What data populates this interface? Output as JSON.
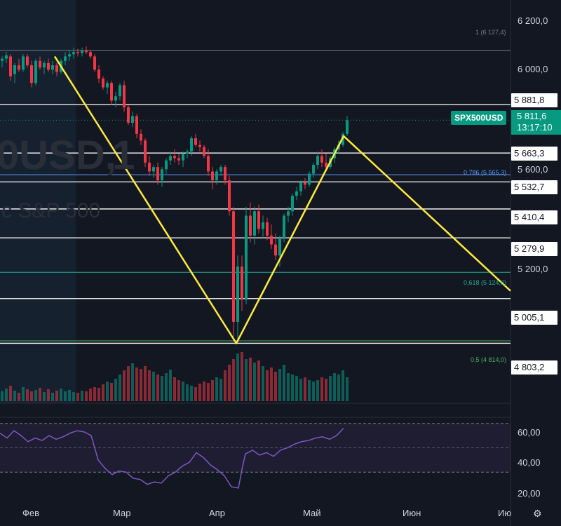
{
  "chart_data": {
    "type": "candlestick",
    "symbol": "SPX500USD",
    "watermark": {
      "symbol": "0USD,",
      "interval": "1",
      "name": "c S&P 500"
    },
    "last_price": "5 811,6",
    "countdown": "13:17:10",
    "price_axis_ticks": [
      "6 200,0",
      "6 000,0",
      "5 600,0",
      "5 200,0"
    ],
    "horizontal_levels": [
      "5 881,8",
      "5 663,3",
      "5 532,7",
      "5 410,4",
      "5 279,9",
      "5 005,1",
      "4 803,2"
    ],
    "fib_levels": [
      {
        "text": "1 (6 127,4)",
        "value": 6127.4,
        "color": "#787b86"
      },
      {
        "text": "0,786 (5 565,3)",
        "value": 5565.3,
        "color": "#5b9cf6"
      },
      {
        "text": "0,618 (5 124,0)",
        "value": 5124.0,
        "color": "#22ab94"
      },
      {
        "text": "0,5 (4 814,0)",
        "value": 4814.0,
        "color": "#4caf50"
      }
    ],
    "x_ticks": [
      "Фев",
      "Мар",
      "Апр",
      "Май",
      "Июн",
      "Ию"
    ],
    "rsi_ticks": [
      "60,00",
      "40,00",
      "20,00"
    ],
    "y_range": [
      4700,
      6260
    ],
    "rsi_range": [
      10,
      75
    ],
    "colors": {
      "up": "#089981",
      "down": "#f23645",
      "zigzag": "#ffeb3b",
      "rsi": "#7e57c2",
      "level": "#ffffff",
      "background": "#131722"
    },
    "zigzag": [
      [
        78,
        6100
      ],
      [
        337,
        4803
      ],
      [
        490,
        5740
      ],
      [
        728,
        5040
      ]
    ],
    "candles": [
      [
        0,
        6080,
        6100,
        6050,
        6090
      ],
      [
        6,
        6090,
        6120,
        6070,
        6105
      ],
      [
        12,
        6100,
        6110,
        5990,
        6010
      ],
      [
        18,
        6020,
        6070,
        5980,
        6060
      ],
      [
        24,
        6060,
        6090,
        6030,
        6040
      ],
      [
        30,
        6040,
        6110,
        6030,
        6100
      ],
      [
        36,
        6100,
        6110,
        6050,
        6060
      ],
      [
        42,
        6060,
        6080,
        5960,
        5980
      ],
      [
        48,
        5980,
        6090,
        5970,
        6080
      ],
      [
        54,
        6080,
        6100,
        6040,
        6050
      ],
      [
        60,
        6050,
        6080,
        6020,
        6070
      ],
      [
        66,
        6070,
        6090,
        6030,
        6040
      ],
      [
        72,
        6040,
        6080,
        6020,
        6060
      ],
      [
        78,
        6060,
        6070,
        6010,
        6030
      ],
      [
        84,
        6030,
        6090,
        6020,
        6080
      ],
      [
        90,
        6080,
        6120,
        6060,
        6100
      ],
      [
        96,
        6100,
        6130,
        6080,
        6110
      ],
      [
        102,
        6110,
        6140,
        6090,
        6120
      ],
      [
        108,
        6120,
        6135,
        6100,
        6115
      ],
      [
        114,
        6115,
        6140,
        6100,
        6125
      ],
      [
        120,
        6125,
        6145,
        6110,
        6120
      ],
      [
        126,
        6120,
        6130,
        6090,
        6100
      ],
      [
        132,
        6100,
        6110,
        6030,
        6040
      ],
      [
        138,
        6040,
        6060,
        5980,
        6000
      ],
      [
        144,
        6000,
        6010,
        5950,
        5960
      ],
      [
        150,
        5960,
        5990,
        5930,
        5980
      ],
      [
        156,
        5980,
        5990,
        5880,
        5900
      ],
      [
        162,
        5900,
        5940,
        5870,
        5920
      ],
      [
        168,
        5920,
        5980,
        5900,
        5970
      ],
      [
        174,
        5970,
        5990,
        5850,
        5870
      ],
      [
        180,
        5870,
        5880,
        5790,
        5800
      ],
      [
        186,
        5800,
        5850,
        5780,
        5830
      ],
      [
        192,
        5830,
        5840,
        5730,
        5750
      ],
      [
        198,
        5750,
        5770,
        5700,
        5720
      ],
      [
        204,
        5720,
        5730,
        5600,
        5620
      ],
      [
        210,
        5620,
        5650,
        5560,
        5580
      ],
      [
        216,
        5580,
        5610,
        5550,
        5600
      ],
      [
        222,
        5600,
        5620,
        5520,
        5540
      ],
      [
        228,
        5540,
        5600,
        5510,
        5590
      ],
      [
        234,
        5590,
        5640,
        5570,
        5630
      ],
      [
        240,
        5630,
        5670,
        5610,
        5650
      ],
      [
        246,
        5650,
        5680,
        5620,
        5640
      ],
      [
        252,
        5640,
        5660,
        5610,
        5630
      ],
      [
        258,
        5630,
        5670,
        5600,
        5660
      ],
      [
        264,
        5660,
        5680,
        5640,
        5670
      ],
      [
        270,
        5670,
        5740,
        5650,
        5730
      ],
      [
        276,
        5730,
        5750,
        5690,
        5700
      ],
      [
        282,
        5700,
        5720,
        5670,
        5690
      ],
      [
        288,
        5690,
        5700,
        5640,
        5650
      ],
      [
        294,
        5650,
        5680,
        5560,
        5580
      ],
      [
        300,
        5580,
        5600,
        5500,
        5540
      ],
      [
        306,
        5540,
        5590,
        5520,
        5580
      ],
      [
        312,
        5580,
        5610,
        5560,
        5600
      ],
      [
        318,
        5600,
        5610,
        5520,
        5540
      ],
      [
        324,
        5540,
        5560,
        5380,
        5400
      ],
      [
        330,
        5400,
        5420,
        4830,
        4900
      ],
      [
        336,
        4900,
        5200,
        4810,
        5150
      ],
      [
        342,
        5150,
        5200,
        4950,
        5000
      ],
      [
        348,
        5000,
        5420,
        4980,
        5380
      ],
      [
        354,
        5380,
        5440,
        5260,
        5290
      ],
      [
        360,
        5290,
        5420,
        5250,
        5400
      ],
      [
        366,
        5400,
        5430,
        5300,
        5320
      ],
      [
        372,
        5320,
        5380,
        5280,
        5350
      ],
      [
        378,
        5350,
        5370,
        5270,
        5290
      ],
      [
        384,
        5290,
        5340,
        5230,
        5250
      ],
      [
        390,
        5250,
        5300,
        5180,
        5200
      ],
      [
        396,
        5200,
        5290,
        5150,
        5280
      ],
      [
        402,
        5280,
        5390,
        5260,
        5380
      ],
      [
        408,
        5380,
        5420,
        5350,
        5400
      ],
      [
        414,
        5400,
        5480,
        5380,
        5470
      ],
      [
        420,
        5470,
        5510,
        5450,
        5490
      ],
      [
        426,
        5490,
        5540,
        5470,
        5530
      ],
      [
        432,
        5530,
        5550,
        5500,
        5520
      ],
      [
        438,
        5520,
        5580,
        5510,
        5570
      ],
      [
        444,
        5570,
        5620,
        5550,
        5610
      ],
      [
        450,
        5610,
        5670,
        5590,
        5650
      ],
      [
        456,
        5650,
        5680,
        5600,
        5620
      ],
      [
        462,
        5620,
        5660,
        5580,
        5600
      ],
      [
        468,
        5600,
        5650,
        5590,
        5640
      ],
      [
        474,
        5640,
        5690,
        5620,
        5680
      ],
      [
        480,
        5680,
        5720,
        5660,
        5700
      ],
      [
        486,
        5700,
        5760,
        5690,
        5750
      ],
      [
        492,
        5750,
        5830,
        5740,
        5811.6
      ]
    ],
    "rsi": [
      [
        0,
        62
      ],
      [
        10,
        58
      ],
      [
        20,
        64
      ],
      [
        30,
        60
      ],
      [
        40,
        55
      ],
      [
        50,
        58
      ],
      [
        60,
        56
      ],
      [
        70,
        60
      ],
      [
        80,
        57
      ],
      [
        90,
        59
      ],
      [
        100,
        62
      ],
      [
        110,
        64
      ],
      [
        120,
        63
      ],
      [
        130,
        60
      ],
      [
        140,
        40
      ],
      [
        150,
        33
      ],
      [
        160,
        28
      ],
      [
        170,
        31
      ],
      [
        180,
        30
      ],
      [
        190,
        25
      ],
      [
        200,
        24
      ],
      [
        210,
        20
      ],
      [
        220,
        22
      ],
      [
        230,
        21
      ],
      [
        240,
        27
      ],
      [
        250,
        30
      ],
      [
        260,
        35
      ],
      [
        270,
        38
      ],
      [
        280,
        46
      ],
      [
        290,
        42
      ],
      [
        300,
        36
      ],
      [
        310,
        32
      ],
      [
        320,
        27
      ],
      [
        330,
        18
      ],
      [
        340,
        17
      ],
      [
        346,
        35
      ],
      [
        350,
        45
      ],
      [
        360,
        48
      ],
      [
        370,
        44
      ],
      [
        380,
        46
      ],
      [
        390,
        43
      ],
      [
        400,
        48
      ],
      [
        410,
        50
      ],
      [
        420,
        53
      ],
      [
        430,
        55
      ],
      [
        440,
        56
      ],
      [
        450,
        58
      ],
      [
        460,
        59
      ],
      [
        470,
        57
      ],
      [
        480,
        60
      ],
      [
        490,
        66
      ]
    ],
    "volume": [
      [
        0,
        14
      ],
      [
        6,
        18
      ],
      [
        12,
        22
      ],
      [
        18,
        15
      ],
      [
        24,
        12
      ],
      [
        30,
        20
      ],
      [
        36,
        17
      ],
      [
        42,
        14
      ],
      [
        48,
        16
      ],
      [
        54,
        19
      ],
      [
        60,
        13
      ],
      [
        66,
        17
      ],
      [
        72,
        12
      ],
      [
        78,
        15
      ],
      [
        84,
        18
      ],
      [
        90,
        14
      ],
      [
        96,
        16
      ],
      [
        102,
        13
      ],
      [
        108,
        12
      ],
      [
        114,
        15
      ],
      [
        120,
        14
      ],
      [
        126,
        18
      ],
      [
        132,
        20
      ],
      [
        138,
        19
      ],
      [
        144,
        24
      ],
      [
        150,
        28
      ],
      [
        156,
        26
      ],
      [
        162,
        32
      ],
      [
        168,
        38
      ],
      [
        174,
        44
      ],
      [
        180,
        50
      ],
      [
        186,
        54
      ],
      [
        192,
        48
      ],
      [
        198,
        46
      ],
      [
        204,
        50
      ],
      [
        210,
        44
      ],
      [
        216,
        42
      ],
      [
        222,
        38
      ],
      [
        228,
        36
      ],
      [
        234,
        40
      ],
      [
        240,
        45
      ],
      [
        246,
        34
      ],
      [
        252,
        30
      ],
      [
        258,
        28
      ],
      [
        264,
        24
      ],
      [
        270,
        22
      ],
      [
        276,
        20
      ],
      [
        282,
        25
      ],
      [
        288,
        28
      ],
      [
        294,
        26
      ],
      [
        300,
        30
      ],
      [
        306,
        34
      ],
      [
        312,
        32
      ],
      [
        318,
        44
      ],
      [
        324,
        52
      ],
      [
        330,
        60
      ],
      [
        336,
        68
      ],
      [
        342,
        70
      ],
      [
        348,
        60
      ],
      [
        354,
        62
      ],
      [
        360,
        55
      ],
      [
        366,
        58
      ],
      [
        372,
        50
      ],
      [
        378,
        44
      ],
      [
        384,
        48
      ],
      [
        390,
        42
      ],
      [
        396,
        46
      ],
      [
        402,
        52
      ],
      [
        408,
        40
      ],
      [
        414,
        38
      ],
      [
        420,
        36
      ],
      [
        426,
        32
      ],
      [
        432,
        34
      ],
      [
        438,
        30
      ],
      [
        444,
        28
      ],
      [
        450,
        30
      ],
      [
        456,
        34
      ],
      [
        462,
        32
      ],
      [
        468,
        36
      ],
      [
        474,
        40
      ],
      [
        480,
        38
      ],
      [
        486,
        44
      ],
      [
        492,
        34
      ]
    ]
  }
}
